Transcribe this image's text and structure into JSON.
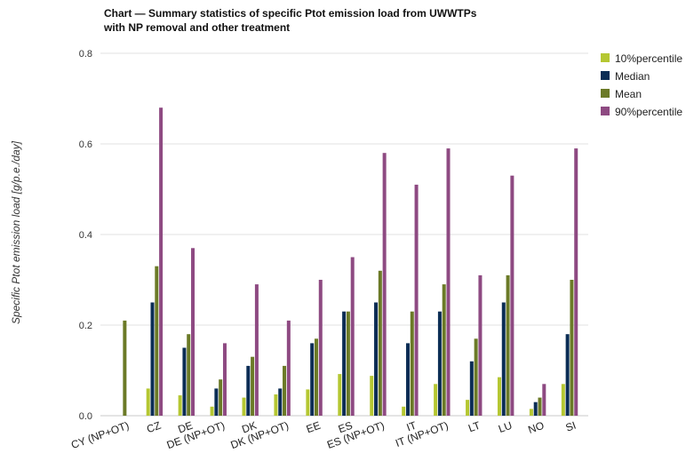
{
  "chart_data": {
    "type": "bar",
    "title_line1": "Chart — Summary statistics of specific Ptot emission load from UWWTPs",
    "title_line2": "with NP removal and other treatment",
    "ylabel": "Specific Ptot emission load [g/p.e./day]",
    "xlabel": "",
    "ylim": [
      0,
      0.8
    ],
    "yticks": [
      "0.0",
      "0.2",
      "0.4",
      "0.6",
      "0.8"
    ],
    "grid": true,
    "legend_position": "right",
    "categories": [
      "CY (NP+OT)",
      "CZ",
      "DE",
      "DE (NP+OT)",
      "DK",
      "DK (NP+OT)",
      "EE",
      "ES",
      "ES (NP+OT)",
      "IT",
      "IT (NP+OT)",
      "LT",
      "LU",
      "NO",
      "SI"
    ],
    "series": [
      {
        "name": "10%percentile",
        "color": "#b5c732",
        "values": [
          0,
          0.06,
          0.045,
          0.02,
          0.04,
          0.047,
          0.058,
          0.092,
          0.088,
          0.02,
          0.07,
          0.035,
          0.085,
          0.015,
          0.07
        ]
      },
      {
        "name": "Median",
        "color": "#0b2d55",
        "values": [
          0,
          0.25,
          0.15,
          0.06,
          0.11,
          0.06,
          0.16,
          0.23,
          0.25,
          0.16,
          0.23,
          0.12,
          0.25,
          0.03,
          0.18
        ]
      },
      {
        "name": "Mean",
        "color": "#6b7a27",
        "values": [
          0.21,
          0.33,
          0.18,
          0.08,
          0.13,
          0.11,
          0.17,
          0.23,
          0.32,
          0.23,
          0.29,
          0.17,
          0.31,
          0.04,
          0.3
        ]
      },
      {
        "name": "90%percentile",
        "color": "#8e4a82",
        "values": [
          0,
          0.68,
          0.37,
          0.16,
          0.29,
          0.21,
          0.3,
          0.35,
          0.58,
          0.51,
          0.59,
          0.31,
          0.53,
          0.07,
          0.59
        ]
      }
    ]
  }
}
